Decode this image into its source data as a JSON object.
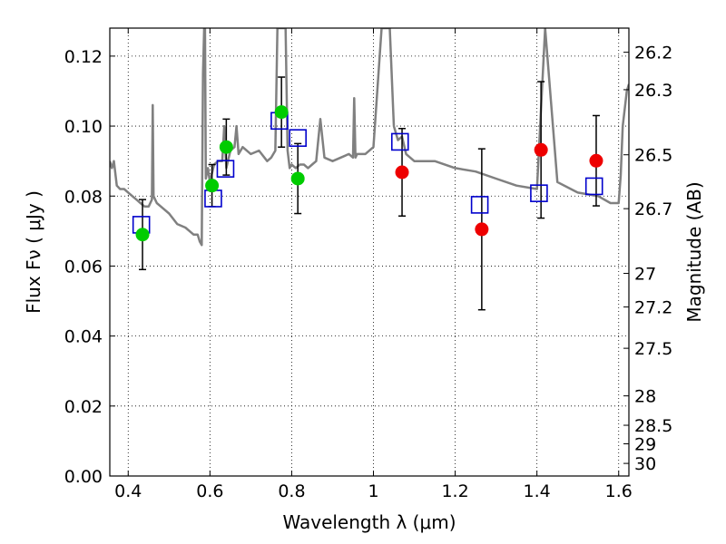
{
  "chart_data": {
    "type": "scatter",
    "xlabel": "Wavelength  λ (μm)",
    "ylabel": "Flux  Fν  ( μJy )",
    "ylabel_right": "Magnitude (AB)",
    "xlim": [
      0.355,
      1.625
    ],
    "ylim": [
      0.0,
      0.128
    ],
    "x_ticks": [
      0.4,
      0.6,
      0.8,
      1.0,
      1.2,
      1.4,
      1.6
    ],
    "x_tick_labels": [
      "0.4",
      "0.6",
      "0.8",
      "1",
      "1.2",
      "1.4",
      "1.6"
    ],
    "y_ticks": [
      0.0,
      0.02,
      0.04,
      0.06,
      0.08,
      0.1,
      0.12
    ],
    "y_tick_labels": [
      "0.00",
      "0.02",
      "0.04",
      "0.06",
      "0.08",
      "0.10",
      "0.12"
    ],
    "right_ticks": [
      {
        "label": "26.2",
        "flux": 0.1211
      },
      {
        "label": "26.3",
        "flux": 0.1104
      },
      {
        "label": "26.5",
        "flux": 0.0918
      },
      {
        "label": "26.7",
        "flux": 0.0764
      },
      {
        "label": "27",
        "flux": 0.0579
      },
      {
        "label": "27.2",
        "flux": 0.0483
      },
      {
        "label": "27.5",
        "flux": 0.0365
      },
      {
        "label": "28",
        "flux": 0.0229
      },
      {
        "label": "28.5",
        "flux": 0.0145
      },
      {
        "label": "29",
        "flux": 0.0092
      },
      {
        "label": "30",
        "flux": 0.0036
      }
    ],
    "grid": true,
    "colors": {
      "model_line": "#808080",
      "green_points": "#00cc00",
      "red_points": "#ee0000",
      "model_squares": "#0000cc",
      "errorbars": "#000000"
    },
    "series": [
      {
        "kind": "line",
        "x": [
          0.355,
          0.36,
          0.365,
          0.372,
          0.38,
          0.39,
          0.4,
          0.41,
          0.42,
          0.43,
          0.44,
          0.45,
          0.458,
          0.46,
          0.462,
          0.47,
          0.48,
          0.5,
          0.52,
          0.54,
          0.56,
          0.57,
          0.575,
          0.58,
          0.583,
          0.586,
          0.588,
          0.59,
          0.595,
          0.6,
          0.61,
          0.62,
          0.63,
          0.635,
          0.64,
          0.65,
          0.66,
          0.665,
          0.67,
          0.68,
          0.69,
          0.7,
          0.72,
          0.74,
          0.75,
          0.76,
          0.765,
          0.77,
          0.775,
          0.78,
          0.785,
          0.79,
          0.795,
          0.8,
          0.81,
          0.82,
          0.83,
          0.84,
          0.85,
          0.86,
          0.87,
          0.88,
          0.9,
          0.92,
          0.94,
          0.95,
          0.953,
          0.956,
          0.96,
          0.98,
          1.0,
          1.02,
          1.03,
          1.04,
          1.05,
          1.06,
          1.07,
          1.08,
          1.1,
          1.15,
          1.2,
          1.25,
          1.3,
          1.35,
          1.4,
          1.42,
          1.45,
          1.5,
          1.55,
          1.58,
          1.6,
          1.605,
          1.61,
          1.62,
          1.625
        ],
        "y": [
          0.09,
          0.088,
          0.09,
          0.083,
          0.082,
          0.082,
          0.081,
          0.08,
          0.079,
          0.078,
          0.077,
          0.077,
          0.079,
          0.106,
          0.08,
          0.078,
          0.077,
          0.075,
          0.072,
          0.071,
          0.069,
          0.069,
          0.067,
          0.066,
          0.115,
          0.128,
          0.128,
          0.085,
          0.088,
          0.084,
          0.089,
          0.09,
          0.09,
          0.1,
          0.088,
          0.093,
          0.094,
          0.1,
          0.092,
          0.094,
          0.093,
          0.092,
          0.093,
          0.09,
          0.091,
          0.093,
          0.128,
          0.128,
          0.128,
          0.128,
          0.128,
          0.093,
          0.088,
          0.089,
          0.088,
          0.089,
          0.089,
          0.088,
          0.089,
          0.09,
          0.102,
          0.091,
          0.09,
          0.091,
          0.092,
          0.091,
          0.108,
          0.091,
          0.092,
          0.092,
          0.094,
          0.128,
          0.128,
          0.128,
          0.1,
          0.096,
          0.097,
          0.092,
          0.09,
          0.09,
          0.088,
          0.087,
          0.085,
          0.083,
          0.082,
          0.128,
          0.084,
          0.081,
          0.08,
          0.078,
          0.078,
          0.086,
          0.1,
          0.11,
          0.112
        ]
      },
      {
        "kind": "points",
        "marker": "circle",
        "color": "#00cc00",
        "x": [
          0.435,
          0.605,
          0.64,
          0.775,
          0.815
        ],
        "y": [
          0.069,
          0.083,
          0.094,
          0.104,
          0.085
        ],
        "err_low": [
          0.01,
          0.006,
          0.008,
          0.01,
          0.01
        ],
        "err_high": [
          0.01,
          0.006,
          0.008,
          0.01,
          0.01
        ]
      },
      {
        "kind": "points",
        "marker": "circle",
        "color": "#ee0000",
        "x": [
          1.07,
          1.265,
          1.41,
          1.545
        ],
        "y": [
          0.0868,
          0.0705,
          0.0932,
          0.0901
        ],
        "err_low": [
          0.0125,
          0.023,
          0.0195,
          0.0129
        ],
        "err_high": [
          0.0125,
          0.023,
          0.0195,
          0.0129
        ]
      },
      {
        "kind": "points",
        "marker": "square",
        "color": "#0000cc",
        "x": [
          0.432,
          0.608,
          0.638,
          0.77,
          0.815,
          1.065,
          1.26,
          1.405,
          1.54
        ],
        "y": [
          0.0718,
          0.0793,
          0.0878,
          0.1015,
          0.0966,
          0.0955,
          0.0775,
          0.0808,
          0.0828
        ]
      }
    ]
  }
}
